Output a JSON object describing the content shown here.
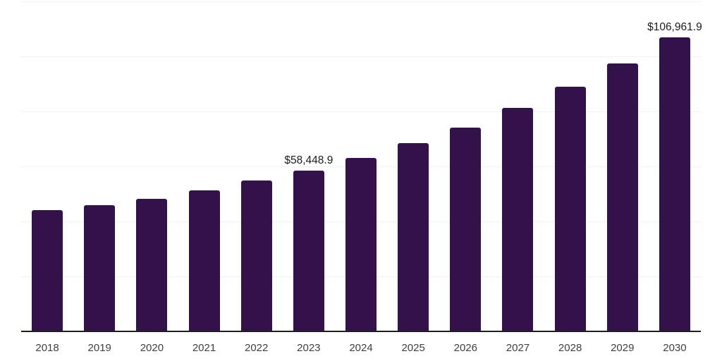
{
  "chart_data": {
    "type": "bar",
    "title": "",
    "xlabel": "",
    "ylabel": "",
    "categories": [
      "2018",
      "2019",
      "2020",
      "2021",
      "2022",
      "2023",
      "2024",
      "2025",
      "2026",
      "2027",
      "2028",
      "2029",
      "2030"
    ],
    "values": [
      44100,
      45900,
      48200,
      51350,
      54750,
      58448.9,
      63130,
      68400,
      74030,
      81200,
      89050,
      97420,
      106961.9
    ],
    "annotations": [
      {
        "category": "2023",
        "text": "$58,448.9"
      },
      {
        "category": "2030",
        "text": "$106,961.9"
      }
    ],
    "ylim": [
      0,
      120000
    ],
    "grid": true,
    "gridline_values": [
      20000,
      40000,
      60000,
      80000,
      100000,
      120000
    ],
    "y_axis_labels_visible": false,
    "legend": "none",
    "colors": {
      "bar": "#321248",
      "gridline": "#f1f1f3",
      "axis_line": "#1f1f1f",
      "tick_label": "#404040",
      "data_label": "#1c1c1c",
      "background": "#ffffff"
    }
  }
}
